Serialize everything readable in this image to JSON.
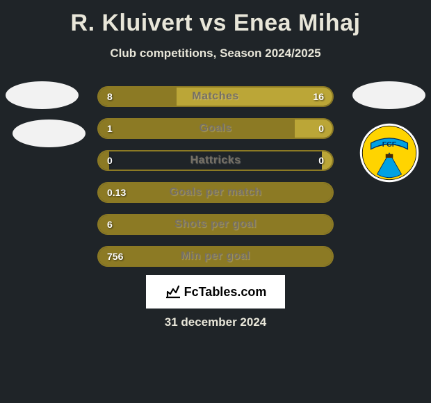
{
  "title": {
    "player1": "R. Kluivert",
    "vs": "vs",
    "player2": "Enea Mihaj"
  },
  "subtitle": "Club competitions, Season 2024/2025",
  "colors": {
    "left": "#8c7a24",
    "right": "#bba637",
    "border": "#8c7a24",
    "background": "#1f2428",
    "text_light": "#e8e6d9"
  },
  "stats": [
    {
      "label": "Matches",
      "left_val": "8",
      "right_val": "16",
      "left_pct": 33.3,
      "right_pct": 66.7
    },
    {
      "label": "Goals",
      "left_val": "1",
      "right_val": "0",
      "left_pct": 100,
      "right_pct": 16.0
    },
    {
      "label": "Hattricks",
      "left_val": "0",
      "right_val": "0",
      "left_pct": 4.5,
      "right_pct": 4.5
    },
    {
      "label": "Goals per match",
      "left_val": "0.13",
      "right_val": "",
      "left_pct": 100,
      "right_pct": 0
    },
    {
      "label": "Shots per goal",
      "left_val": "6",
      "right_val": "",
      "left_pct": 100,
      "right_pct": 0
    },
    {
      "label": "Min per goal",
      "left_val": "756",
      "right_val": "",
      "left_pct": 100,
      "right_pct": 0
    }
  ],
  "club_badge": {
    "label": "FCF",
    "ribbon_color": "#00a1e4",
    "main_color": "#ffd400",
    "outer_color": "#ffffff"
  },
  "brand": "FcTables.com",
  "date": "31 december 2024"
}
